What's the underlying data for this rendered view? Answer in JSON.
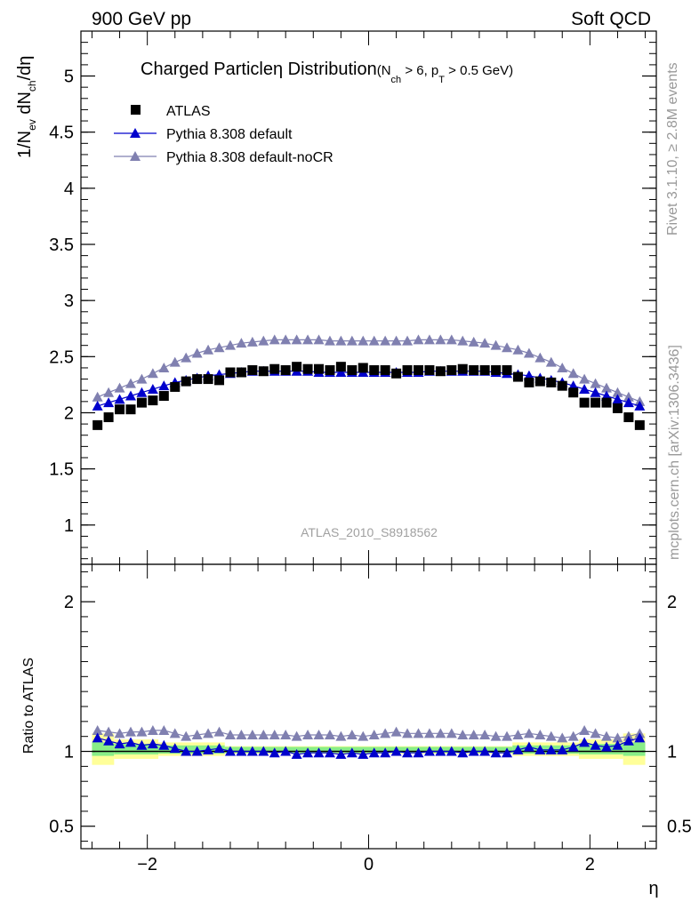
{
  "header": {
    "left": "900 GeV pp",
    "right": "Soft QCD"
  },
  "side_labels": {
    "rivet": "Rivet 3.1.10, ≥ 2.8M events",
    "mcplots": "mcplots.cern.ch [arXiv:1306.3436]"
  },
  "watermark": "ATLAS_2010_S8918562",
  "colors": {
    "atlas": "#000000",
    "default": "#0000cc",
    "noCR": "#8080b0",
    "band_inner": "#88ee88",
    "band_outer": "#ffff99"
  },
  "chart_data": [
    {
      "type": "scatter",
      "title_main": "Charged Particle",
      "title_eta": "η",
      "title_dist": " Distribution",
      "title_cond_open": "(N",
      "title_cond_sub1": "ch",
      "title_cond_mid": " > 6, p",
      "title_cond_sub2": "T",
      "title_cond_end": " > 0.5 GeV)",
      "ylabel_parts": [
        "1/N",
        "ev",
        " dN",
        "ch",
        "/dη"
      ],
      "xlabel": "η",
      "xlim": [
        -2.6,
        2.6
      ],
      "ylim": [
        0.65,
        5.4
      ],
      "xticks": [
        -2,
        0,
        2
      ],
      "xtick_labels": [
        "−2",
        "0",
        "2"
      ],
      "yticks": [
        1,
        1.5,
        2,
        2.5,
        3,
        3.5,
        4,
        4.5,
        5
      ],
      "ytick_labels": [
        "1",
        "1.5",
        "2",
        "2.5",
        "3",
        "3.5",
        "4",
        "4.5",
        "5"
      ],
      "legend_position": "top-left",
      "series": [
        {
          "name": "ATLAS",
          "marker": "square",
          "x": [
            -2.45,
            -2.35,
            -2.25,
            -2.15,
            -2.05,
            -1.95,
            -1.85,
            -1.75,
            -1.65,
            -1.55,
            -1.45,
            -1.35,
            -1.25,
            -1.15,
            -1.05,
            -0.95,
            -0.85,
            -0.75,
            -0.65,
            -0.55,
            -0.45,
            -0.35,
            -0.25,
            -0.15,
            -0.05,
            0.05,
            0.15,
            0.25,
            0.35,
            0.45,
            0.55,
            0.65,
            0.75,
            0.85,
            0.95,
            1.05,
            1.15,
            1.25,
            1.35,
            1.45,
            1.55,
            1.65,
            1.75,
            1.85,
            1.95,
            2.05,
            2.15,
            2.25,
            2.35,
            2.45
          ],
          "y": [
            1.89,
            1.96,
            2.03,
            2.03,
            2.09,
            2.11,
            2.15,
            2.23,
            2.28,
            2.3,
            2.3,
            2.29,
            2.36,
            2.36,
            2.38,
            2.37,
            2.39,
            2.38,
            2.41,
            2.39,
            2.39,
            2.38,
            2.41,
            2.38,
            2.4,
            2.38,
            2.38,
            2.35,
            2.38,
            2.38,
            2.38,
            2.37,
            2.38,
            2.39,
            2.38,
            2.38,
            2.38,
            2.38,
            2.32,
            2.27,
            2.28,
            2.27,
            2.24,
            2.18,
            2.09,
            2.09,
            2.09,
            2.04,
            1.96,
            1.89
          ]
        },
        {
          "name": "Pythia 8.308 default",
          "marker": "triangle",
          "x": [
            -2.45,
            -2.35,
            -2.25,
            -2.15,
            -2.05,
            -1.95,
            -1.85,
            -1.75,
            -1.65,
            -1.55,
            -1.45,
            -1.35,
            -1.25,
            -1.15,
            -1.05,
            -0.95,
            -0.85,
            -0.75,
            -0.65,
            -0.55,
            -0.45,
            -0.35,
            -0.25,
            -0.15,
            -0.05,
            0.05,
            0.15,
            0.25,
            0.35,
            0.45,
            0.55,
            0.65,
            0.75,
            0.85,
            0.95,
            1.05,
            1.15,
            1.25,
            1.35,
            1.45,
            1.55,
            1.65,
            1.75,
            1.85,
            1.95,
            2.05,
            2.15,
            2.25,
            2.35,
            2.45
          ],
          "y": [
            2.06,
            2.09,
            2.12,
            2.15,
            2.18,
            2.21,
            2.24,
            2.27,
            2.29,
            2.31,
            2.33,
            2.34,
            2.35,
            2.36,
            2.37,
            2.37,
            2.37,
            2.37,
            2.37,
            2.37,
            2.36,
            2.36,
            2.36,
            2.36,
            2.36,
            2.36,
            2.36,
            2.36,
            2.36,
            2.36,
            2.37,
            2.37,
            2.37,
            2.37,
            2.37,
            2.37,
            2.36,
            2.35,
            2.34,
            2.33,
            2.31,
            2.29,
            2.27,
            2.24,
            2.21,
            2.18,
            2.15,
            2.12,
            2.09,
            2.06
          ]
        },
        {
          "name": "Pythia 8.308 default-noCR",
          "marker": "triangle",
          "x": [
            -2.45,
            -2.35,
            -2.25,
            -2.15,
            -2.05,
            -1.95,
            -1.85,
            -1.75,
            -1.65,
            -1.55,
            -1.45,
            -1.35,
            -1.25,
            -1.15,
            -1.05,
            -0.95,
            -0.85,
            -0.75,
            -0.65,
            -0.55,
            -0.45,
            -0.35,
            -0.25,
            -0.15,
            -0.05,
            0.05,
            0.15,
            0.25,
            0.35,
            0.45,
            0.55,
            0.65,
            0.75,
            0.85,
            0.95,
            1.05,
            1.15,
            1.25,
            1.35,
            1.45,
            1.55,
            1.65,
            1.75,
            1.85,
            1.95,
            2.05,
            2.15,
            2.25,
            2.35,
            2.45
          ],
          "y": [
            2.14,
            2.18,
            2.22,
            2.26,
            2.3,
            2.35,
            2.4,
            2.45,
            2.49,
            2.53,
            2.56,
            2.58,
            2.6,
            2.62,
            2.63,
            2.64,
            2.65,
            2.65,
            2.65,
            2.65,
            2.65,
            2.64,
            2.64,
            2.64,
            2.64,
            2.64,
            2.64,
            2.64,
            2.64,
            2.65,
            2.65,
            2.65,
            2.65,
            2.64,
            2.63,
            2.62,
            2.6,
            2.58,
            2.56,
            2.53,
            2.49,
            2.45,
            2.4,
            2.35,
            2.3,
            2.26,
            2.22,
            2.18,
            2.14,
            2.1
          ]
        }
      ]
    },
    {
      "type": "scatter",
      "ylabel": "Ratio to ATLAS",
      "xlabel": "η",
      "xlim": [
        -2.6,
        2.6
      ],
      "ylim": [
        0.35,
        2.25
      ],
      "xticks": [
        -2,
        0,
        2
      ],
      "xtick_labels": [
        "−2",
        "0",
        "2"
      ],
      "yticks": [
        0.5,
        1,
        2
      ],
      "ytick_labels": [
        "0.5",
        "1",
        "2"
      ],
      "ytick_labels_right": [
        "0.5",
        "1",
        "2"
      ],
      "reference_line": 1,
      "bands": {
        "edges": [
          -2.5,
          -2.3,
          -1.9,
          -1.3,
          1.3,
          1.9,
          2.3,
          2.5
        ],
        "inner": [
          [
            0.97,
            1.06
          ],
          [
            0.98,
            1.05
          ],
          [
            0.985,
            1.04
          ],
          [
            0.99,
            1.03
          ],
          [
            0.985,
            1.04
          ],
          [
            0.98,
            1.05
          ],
          [
            0.97,
            1.06
          ]
        ],
        "outer": [
          [
            0.91,
            1.12
          ],
          [
            0.95,
            1.08
          ],
          [
            0.97,
            1.06
          ],
          [
            0.985,
            1.035
          ],
          [
            0.97,
            1.06
          ],
          [
            0.95,
            1.08
          ],
          [
            0.91,
            1.12
          ]
        ]
      },
      "series": [
        {
          "name": "Pythia 8.308 default",
          "marker": "triangle",
          "x": [
            -2.45,
            -2.35,
            -2.25,
            -2.15,
            -2.05,
            -1.95,
            -1.85,
            -1.75,
            -1.65,
            -1.55,
            -1.45,
            -1.35,
            -1.25,
            -1.15,
            -1.05,
            -0.95,
            -0.85,
            -0.75,
            -0.65,
            -0.55,
            -0.45,
            -0.35,
            -0.25,
            -0.15,
            -0.05,
            0.05,
            0.15,
            0.25,
            0.35,
            0.45,
            0.55,
            0.65,
            0.75,
            0.85,
            0.95,
            1.05,
            1.15,
            1.25,
            1.35,
            1.45,
            1.55,
            1.65,
            1.75,
            1.85,
            1.95,
            2.05,
            2.15,
            2.25,
            2.35,
            2.45
          ],
          "y": [
            1.09,
            1.07,
            1.05,
            1.06,
            1.04,
            1.05,
            1.04,
            1.02,
            1.0,
            1.0,
            1.01,
            1.02,
            1.0,
            1.0,
            1.0,
            1.0,
            0.99,
            1.0,
            0.98,
            0.99,
            0.99,
            0.99,
            0.98,
            0.99,
            0.98,
            0.99,
            0.99,
            1.0,
            0.99,
            0.99,
            1.0,
            1.0,
            1.0,
            0.99,
            1.0,
            1.0,
            0.99,
            0.99,
            1.01,
            1.03,
            1.01,
            1.01,
            1.01,
            1.03,
            1.06,
            1.04,
            1.03,
            1.04,
            1.07,
            1.09
          ]
        },
        {
          "name": "Pythia 8.308 default-noCR",
          "marker": "triangle",
          "x": [
            -2.45,
            -2.35,
            -2.25,
            -2.15,
            -2.05,
            -1.95,
            -1.85,
            -1.75,
            -1.65,
            -1.55,
            -1.45,
            -1.35,
            -1.25,
            -1.15,
            -1.05,
            -0.95,
            -0.85,
            -0.75,
            -0.65,
            -0.55,
            -0.45,
            -0.35,
            -0.25,
            -0.15,
            -0.05,
            0.05,
            0.15,
            0.25,
            0.35,
            0.45,
            0.55,
            0.65,
            0.75,
            0.85,
            0.95,
            1.05,
            1.15,
            1.25,
            1.35,
            1.45,
            1.55,
            1.65,
            1.75,
            1.85,
            1.95,
            2.05,
            2.15,
            2.25,
            2.35,
            2.45
          ],
          "y": [
            1.14,
            1.13,
            1.12,
            1.13,
            1.13,
            1.14,
            1.14,
            1.12,
            1.1,
            1.11,
            1.12,
            1.13,
            1.11,
            1.11,
            1.11,
            1.11,
            1.11,
            1.11,
            1.1,
            1.11,
            1.11,
            1.11,
            1.1,
            1.11,
            1.1,
            1.11,
            1.12,
            1.13,
            1.12,
            1.12,
            1.12,
            1.12,
            1.12,
            1.11,
            1.11,
            1.11,
            1.1,
            1.1,
            1.11,
            1.12,
            1.11,
            1.1,
            1.09,
            1.1,
            1.14,
            1.12,
            1.1,
            1.09,
            1.1,
            1.12
          ]
        }
      ]
    }
  ]
}
